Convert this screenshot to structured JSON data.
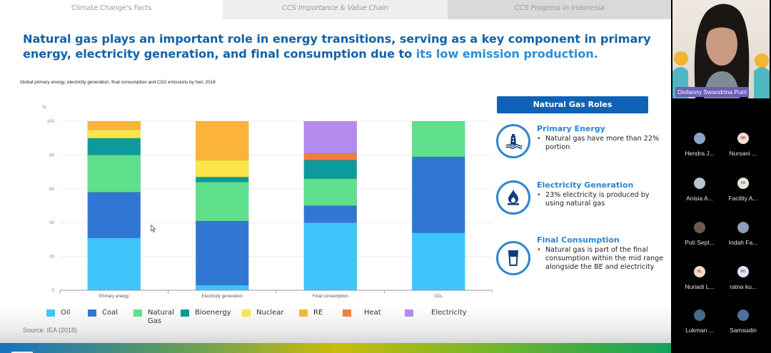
{
  "tabs": [
    {
      "label": "Climate Change's Facts",
      "active": true
    },
    {
      "label": "CCS Importance & Value Chain",
      "active": false
    },
    {
      "label": "CCS Progress in Indonesia",
      "active": false
    }
  ],
  "headline": {
    "part1": "Natural gas plays an important role in energy transitions, serving as a key component in primary energy, electricity generation, and final consumption due to ",
    "highlight": "its low emission production."
  },
  "chart_caption": "Global primary energy, electricity generation, final consumption and CO2 emissions by fuel, 2018",
  "source": "Source: IEA (2018)",
  "chart_data": {
    "type": "bar",
    "stacked": true,
    "title": "Global primary energy, electricity generation, final consumption and CO2 emissions by fuel, 2018",
    "xlabel": "",
    "ylabel": "%",
    "ylim": [
      0,
      100
    ],
    "yticks": [
      0,
      20,
      40,
      60,
      80,
      100
    ],
    "grid": true,
    "legend_position": "bottom",
    "categories": [
      "Primary energy",
      "Electricity generation",
      "Final consumption",
      "CO₂"
    ],
    "series": [
      {
        "name": "Oil",
        "color": "#3ec5fb",
        "values": [
          31,
          3,
          40,
          34
        ]
      },
      {
        "name": "Coal",
        "color": "#3176d3",
        "values": [
          27,
          38,
          10,
          45
        ]
      },
      {
        "name": "Natural Gas",
        "color": "#5ee08c",
        "values": [
          22,
          23,
          16,
          21
        ]
      },
      {
        "name": "Bioenergy",
        "color": "#0e9a9a",
        "values": [
          10,
          3,
          11,
          0
        ]
      },
      {
        "name": "Nuclear",
        "color": "#fbe54a",
        "values": [
          5,
          10,
          0,
          0
        ]
      },
      {
        "name": "RE",
        "color": "#fbb33a",
        "values": [
          5,
          23,
          0,
          0
        ]
      },
      {
        "name": "Heat",
        "color": "#f47d3e",
        "values": [
          0,
          0,
          4,
          0
        ]
      },
      {
        "name": "Electricity",
        "color": "#b38bef",
        "values": [
          0,
          0,
          19,
          0
        ]
      }
    ]
  },
  "legend": [
    {
      "label": "Oil",
      "color": "#3ec5fb"
    },
    {
      "label": "Coal",
      "color": "#3176d3"
    },
    {
      "label": "Natural Gas",
      "color": "#5ee08c"
    },
    {
      "label": "Bioenergy",
      "color": "#0e9a9a"
    },
    {
      "label": "Nuclear",
      "color": "#fbe54a"
    },
    {
      "label": "RE",
      "color": "#fbb33a"
    },
    {
      "label": "Heat",
      "color": "#f47d3e"
    },
    {
      "label": "Electricity",
      "color": "#b38bef"
    }
  ],
  "roles": {
    "title": "Natural Gas Roles",
    "items": [
      {
        "icon": "gas-platform-icon",
        "title": "Primary Energy",
        "bullet": "Natural gas have more than 22% portion"
      },
      {
        "icon": "flame-icon",
        "title": "Electricity Generation",
        "bullet": "23% electricity is produced by using natural gas"
      },
      {
        "icon": "glass-icon",
        "title": "Final Consumption",
        "bullet": "Natural gas is part of the final consumption within the mid range alongside the BE and electricity"
      }
    ]
  },
  "meeting": {
    "speaker_name": "Diofanny Swandrina Putri",
    "participants": [
      {
        "name": "Hendra J...",
        "initials": "",
        "avatar_color": "#8aa3c4"
      },
      {
        "name": "Nursani ...",
        "initials": "NR",
        "avatar_color": "#f3ddd6"
      },
      {
        "name": "Anisia A...",
        "initials": "",
        "avatar_color": "#b9c4cc"
      },
      {
        "name": "Facility A...",
        "initials": "FA",
        "avatar_color": "#e6e6de"
      },
      {
        "name": "Puti Sept...",
        "initials": "",
        "avatar_color": "#6b5a52"
      },
      {
        "name": "Indah Fa...",
        "initials": "",
        "avatar_color": "#8c9db6"
      },
      {
        "name": "Nuriadi L...",
        "initials": "NL",
        "avatar_color": "#f6d9c9"
      },
      {
        "name": "ratna ku...",
        "initials": "RD",
        "avatar_color": "#dbe6f4"
      },
      {
        "name": "Lukman ...",
        "initials": "",
        "avatar_color": "#3f6e8c"
      },
      {
        "name": "Samsudin",
        "initials": "",
        "avatar_color": "#4e6f9c"
      }
    ]
  }
}
